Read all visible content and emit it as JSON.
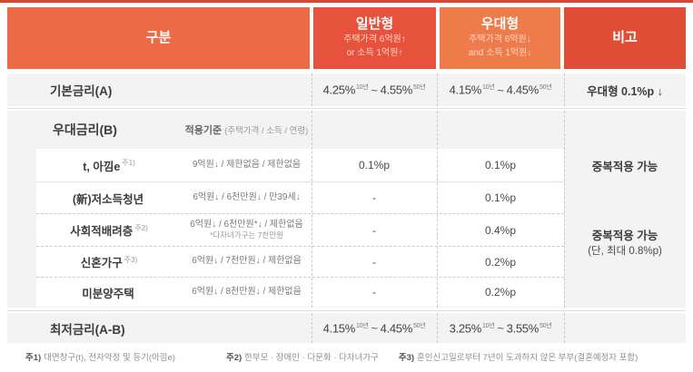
{
  "colors": {
    "top_bar": "#e0432e",
    "header_gubun_bg": "#ec6a45",
    "header_general_bg": "#e6523b",
    "header_preferred_bg": "#ee7b4a",
    "header_note_bg": "#e14e37",
    "section_bg": "#f3f3f3",
    "header_text": "#ffffff",
    "header_sub_text": "#ffd6c6"
  },
  "table": {
    "header": {
      "gubun": "구분",
      "general": {
        "title": "일반형",
        "sub1": "주택가격 6억원↑",
        "sub2": "or 소득 1억원↑"
      },
      "preferred": {
        "title": "우대형",
        "sub1": "주택가격 6억원↓",
        "sub2": "and 소득 1억원↓"
      },
      "note": "비고"
    },
    "base_rate": {
      "label": "기본금리(A)",
      "general": {
        "v1": "4.25%",
        "s1": "10년",
        "sep": "~",
        "v2": "4.55%",
        "s2": "50년"
      },
      "preferred": {
        "v1": "4.15%",
        "s1": "10년",
        "sep": "~",
        "v2": "4.45%",
        "s2": "50년"
      },
      "note": "우대형 0.1%p ↓"
    },
    "discount": {
      "label": "우대금리(B)",
      "criteria_title": "적용기준",
      "criteria_sub": "(주택가격 / 소득 / 연령)",
      "rows": [
        {
          "label": "t, 아낌e",
          "sup": "주1)",
          "criteria": "9억원↓ / 제한없음 / 제한없음",
          "general": "0.1%p",
          "preferred": "0.1%p"
        },
        {
          "label": "(新)저소득청년",
          "sup": "",
          "criteria": "6억원↓ / 6천만원↓ / 만39세↓",
          "general": "-",
          "preferred": "0.1%p"
        },
        {
          "label": "사회적배려층",
          "sup": "주2)",
          "criteria": "6억원↓ / 6천만원*↓ / 제한없음",
          "criteria_note": "*다자녀가구는 7천만원",
          "general": "-",
          "preferred": "0.4%p"
        },
        {
          "label": "신혼가구",
          "sup": "주3)",
          "criteria": "6억원↓ / 7천만원↓ / 제한없음",
          "general": "-",
          "preferred": "0.2%p"
        },
        {
          "label": "미분양주택",
          "sup": "",
          "criteria": "6억원↓ / 8천만원↓ / 제한없음",
          "general": "-",
          "preferred": "0.2%p"
        }
      ],
      "note_row1": "중복적용 가능",
      "note_merged_line1": "중복적용 가능",
      "note_merged_line2": "(단, 최대 0.8%p)"
    },
    "min_rate": {
      "label": "최저금리(A-B)",
      "general": {
        "v1": "4.15%",
        "s1": "10년",
        "sep": "~",
        "v2": "4.45%",
        "s2": "50년"
      },
      "preferred": {
        "v1": "3.25%",
        "s1": "10년",
        "sep": "~",
        "v2": "3.55%",
        "s2": "50년"
      }
    },
    "footnotes": [
      {
        "prefix": "주1)",
        "text": "대면창구(t), 전자약정 및 등기(아낌e)"
      },
      {
        "prefix": "주2)",
        "text": "한부모 · 장애인 · 다문화 · 다자녀가구"
      },
      {
        "prefix": "주3)",
        "text": "혼인신고일로부터 7년이 도과하지 않은 부부(결혼예정자 포함)"
      }
    ]
  }
}
